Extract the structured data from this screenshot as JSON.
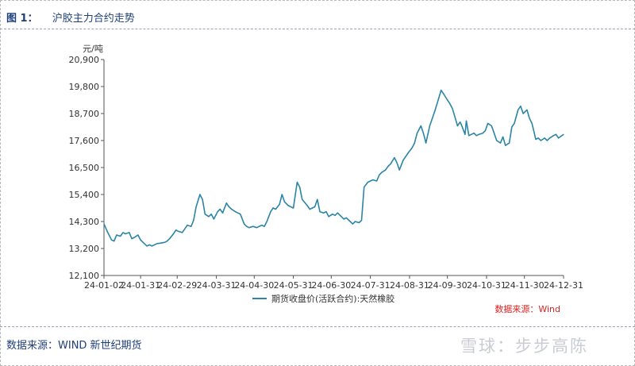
{
  "figure": {
    "number_label": "图 1：",
    "title": "沪胶主力合约走势"
  },
  "source_note": "数据来源：WIND  新世纪期货",
  "watermark": "雪球：步步高陈",
  "colors": {
    "line": "#2b85a6",
    "source_red": "#e02020",
    "frame_blue": "#1f3f7a"
  },
  "chart_data": {
    "type": "line",
    "title": "",
    "xlabel": "",
    "ylabel": "元/吨",
    "ylim": [
      12100,
      20900
    ],
    "yticks": [
      12100,
      13200,
      14300,
      15400,
      16500,
      17600,
      18700,
      19800,
      20900
    ],
    "ytick_labels": [
      "12,100",
      "13,200",
      "14,300",
      "15,400",
      "16,500",
      "17,600",
      "18,700",
      "19,800",
      "20,900"
    ],
    "xlim": [
      "2024-01-02",
      "2024-12-31"
    ],
    "xtick_labels": [
      "24-01-02",
      "24-01-31",
      "24-02-29",
      "24-03-31",
      "24-04-30",
      "24-05-31",
      "24-06-30",
      "24-07-31",
      "24-08-31",
      "24-09-30",
      "24-10-31",
      "24-11-30",
      "24-12-31"
    ],
    "xtick_dates": [
      "2024-01-02",
      "2024-01-31",
      "2024-02-29",
      "2024-03-31",
      "2024-04-30",
      "2024-05-31",
      "2024-06-30",
      "2024-07-31",
      "2024-08-31",
      "2024-09-30",
      "2024-10-31",
      "2024-11-30",
      "2024-12-31"
    ],
    "legend": "bottom-center",
    "grid": false,
    "source_label": "数据来源：Wind",
    "series": [
      {
        "name": "期货收盘价(活跃合约):天然橡胶",
        "color": "#2b85a6",
        "points": [
          [
            "2024-01-02",
            14200
          ],
          [
            "2024-01-05",
            13850
          ],
          [
            "2024-01-08",
            13550
          ],
          [
            "2024-01-10",
            13500
          ],
          [
            "2024-01-12",
            13750
          ],
          [
            "2024-01-15",
            13700
          ],
          [
            "2024-01-17",
            13850
          ],
          [
            "2024-01-19",
            13800
          ],
          [
            "2024-01-22",
            13850
          ],
          [
            "2024-01-24",
            13600
          ],
          [
            "2024-01-26",
            13650
          ],
          [
            "2024-01-29",
            13750
          ],
          [
            "2024-01-31",
            13550
          ],
          [
            "2024-02-02",
            13450
          ],
          [
            "2024-02-05",
            13300
          ],
          [
            "2024-02-07",
            13350
          ],
          [
            "2024-02-09",
            13300
          ],
          [
            "2024-02-13",
            13400
          ],
          [
            "2024-02-16",
            13420
          ],
          [
            "2024-02-19",
            13450
          ],
          [
            "2024-02-21",
            13500
          ],
          [
            "2024-02-23",
            13600
          ],
          [
            "2024-02-26",
            13800
          ],
          [
            "2024-02-28",
            13950
          ],
          [
            "2024-03-01",
            13900
          ],
          [
            "2024-03-04",
            13850
          ],
          [
            "2024-03-06",
            14000
          ],
          [
            "2024-03-08",
            14150
          ],
          [
            "2024-03-11",
            14100
          ],
          [
            "2024-03-13",
            14350
          ],
          [
            "2024-03-15",
            14900
          ],
          [
            "2024-03-18",
            15400
          ],
          [
            "2024-03-20",
            15200
          ],
          [
            "2024-03-22",
            14600
          ],
          [
            "2024-03-25",
            14500
          ],
          [
            "2024-03-27",
            14600
          ],
          [
            "2024-03-29",
            14400
          ],
          [
            "2024-04-01",
            14700
          ],
          [
            "2024-04-03",
            14800
          ],
          [
            "2024-04-05",
            14650
          ],
          [
            "2024-04-08",
            15050
          ],
          [
            "2024-04-10",
            14900
          ],
          [
            "2024-04-12",
            14800
          ],
          [
            "2024-04-15",
            14700
          ],
          [
            "2024-04-17",
            14650
          ],
          [
            "2024-04-19",
            14600
          ],
          [
            "2024-04-22",
            14200
          ],
          [
            "2024-04-24",
            14100
          ],
          [
            "2024-04-26",
            14050
          ],
          [
            "2024-04-29",
            14100
          ],
          [
            "2024-05-02",
            14050
          ],
          [
            "2024-05-06",
            14150
          ],
          [
            "2024-05-08",
            14100
          ],
          [
            "2024-05-10",
            14300
          ],
          [
            "2024-05-13",
            14700
          ],
          [
            "2024-05-15",
            14850
          ],
          [
            "2024-05-17",
            14800
          ],
          [
            "2024-05-20",
            15000
          ],
          [
            "2024-05-22",
            15400
          ],
          [
            "2024-05-24",
            15100
          ],
          [
            "2024-05-27",
            14950
          ],
          [
            "2024-05-29",
            14900
          ],
          [
            "2024-05-31",
            14850
          ],
          [
            "2024-06-03",
            15900
          ],
          [
            "2024-06-05",
            15700
          ],
          [
            "2024-06-07",
            15200
          ],
          [
            "2024-06-11",
            14950
          ],
          [
            "2024-06-13",
            14800
          ],
          [
            "2024-06-17",
            14900
          ],
          [
            "2024-06-19",
            15200
          ],
          [
            "2024-06-21",
            14700
          ],
          [
            "2024-06-24",
            14650
          ],
          [
            "2024-06-26",
            14700
          ],
          [
            "2024-06-28",
            14500
          ],
          [
            "2024-07-01",
            14600
          ],
          [
            "2024-07-03",
            14550
          ],
          [
            "2024-07-05",
            14650
          ],
          [
            "2024-07-08",
            14500
          ],
          [
            "2024-07-10",
            14400
          ],
          [
            "2024-07-12",
            14450
          ],
          [
            "2024-07-15",
            14300
          ],
          [
            "2024-07-17",
            14200
          ],
          [
            "2024-07-19",
            14300
          ],
          [
            "2024-07-22",
            14250
          ],
          [
            "2024-07-24",
            14350
          ],
          [
            "2024-07-26",
            15700
          ],
          [
            "2024-07-29",
            15900
          ],
          [
            "2024-07-31",
            15950
          ],
          [
            "2024-08-02",
            16000
          ],
          [
            "2024-08-05",
            15950
          ],
          [
            "2024-08-07",
            16200
          ],
          [
            "2024-08-09",
            16300
          ],
          [
            "2024-08-12",
            16400
          ],
          [
            "2024-08-14",
            16550
          ],
          [
            "2024-08-16",
            16650
          ],
          [
            "2024-08-19",
            16900
          ],
          [
            "2024-08-21",
            16700
          ],
          [
            "2024-08-23",
            16400
          ],
          [
            "2024-08-26",
            16800
          ],
          [
            "2024-08-28",
            16950
          ],
          [
            "2024-08-30",
            17100
          ],
          [
            "2024-09-02",
            17300
          ],
          [
            "2024-09-04",
            17500
          ],
          [
            "2024-09-06",
            17900
          ],
          [
            "2024-09-09",
            18200
          ],
          [
            "2024-09-11",
            17900
          ],
          [
            "2024-09-13",
            17500
          ],
          [
            "2024-09-16",
            18200
          ],
          [
            "2024-09-18",
            18500
          ],
          [
            "2024-09-20",
            18800
          ],
          [
            "2024-09-23",
            19300
          ],
          [
            "2024-09-25",
            19650
          ],
          [
            "2024-09-27",
            19500
          ],
          [
            "2024-09-30",
            19250
          ],
          [
            "2024-10-02",
            19100
          ],
          [
            "2024-10-04",
            18900
          ],
          [
            "2024-10-08",
            18200
          ],
          [
            "2024-10-10",
            18350
          ],
          [
            "2024-10-11",
            18250
          ],
          [
            "2024-10-14",
            17850
          ],
          [
            "2024-10-15",
            18400
          ],
          [
            "2024-10-17",
            17800
          ],
          [
            "2024-10-21",
            17900
          ],
          [
            "2024-10-23",
            17800
          ],
          [
            "2024-10-25",
            17850
          ],
          [
            "2024-10-28",
            17900
          ],
          [
            "2024-10-30",
            18000
          ],
          [
            "2024-11-01",
            18300
          ],
          [
            "2024-11-04",
            18200
          ],
          [
            "2024-11-06",
            17900
          ],
          [
            "2024-11-08",
            17600
          ],
          [
            "2024-11-11",
            17500
          ],
          [
            "2024-11-13",
            17750
          ],
          [
            "2024-11-15",
            17400
          ],
          [
            "2024-11-18",
            17500
          ],
          [
            "2024-11-20",
            18150
          ],
          [
            "2024-11-22",
            18300
          ],
          [
            "2024-11-25",
            18850
          ],
          [
            "2024-11-27",
            19000
          ],
          [
            "2024-11-29",
            18700
          ],
          [
            "2024-12-02",
            18850
          ],
          [
            "2024-12-04",
            18500
          ],
          [
            "2024-12-06",
            18300
          ],
          [
            "2024-12-09",
            17650
          ],
          [
            "2024-12-11",
            17700
          ],
          [
            "2024-12-13",
            17600
          ],
          [
            "2024-12-16",
            17700
          ],
          [
            "2024-12-18",
            17600
          ],
          [
            "2024-12-20",
            17700
          ],
          [
            "2024-12-23",
            17800
          ],
          [
            "2024-12-25",
            17850
          ],
          [
            "2024-12-27",
            17700
          ],
          [
            "2024-12-31",
            17850
          ]
        ]
      }
    ]
  }
}
